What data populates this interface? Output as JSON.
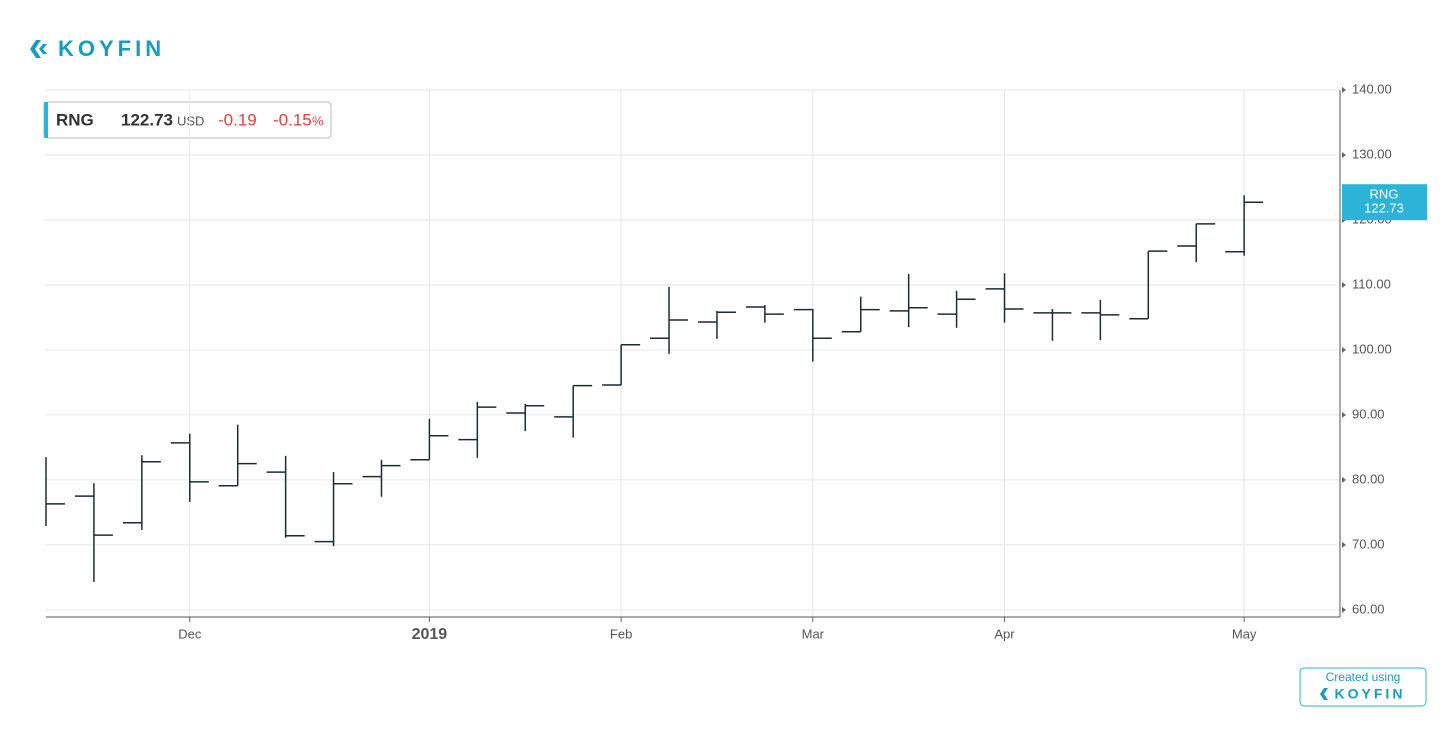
{
  "header": {
    "logo": "KOYFIN"
  },
  "quote": {
    "ticker": "RNG",
    "price": 122.73,
    "currency": "USD",
    "change": -0.19,
    "change_pct": -0.15,
    "pct_sign": "%"
  },
  "chart_data": {
    "type": "ohlc",
    "x": [
      0,
      1,
      2,
      3,
      4,
      5,
      6,
      7,
      8,
      9,
      10,
      11,
      12,
      13,
      14,
      15,
      16,
      17,
      18,
      19,
      20,
      21,
      22,
      23,
      24,
      25
    ],
    "xlim": [
      0,
      27
    ],
    "xticks": [
      {
        "value": 3,
        "label": "Dec"
      },
      {
        "value": 8,
        "label": "2019"
      },
      {
        "value": 12,
        "label": "Feb"
      },
      {
        "value": 16,
        "label": "Mar"
      },
      {
        "value": 20,
        "label": "Apr"
      },
      {
        "value": 25,
        "label": "May"
      }
    ],
    "ylim": [
      58.9,
      140
    ],
    "yticks": [
      {
        "value": 60,
        "label": "60.00"
      },
      {
        "value": 70,
        "label": "70.00"
      },
      {
        "value": 80,
        "label": "80.00"
      },
      {
        "value": 90,
        "label": "90.00"
      },
      {
        "value": 100,
        "label": "100.00"
      },
      {
        "value": 110,
        "label": "110.00"
      },
      {
        "value": 120,
        "label": "120.00"
      },
      {
        "value": 130,
        "label": "130.00"
      },
      {
        "value": 140,
        "label": "140.00"
      }
    ],
    "grid": true,
    "color": "#1d2c33",
    "open": [
      80,
      77.5,
      73.4,
      85.7,
      79.1,
      81.2,
      70.5,
      80.5,
      83.1,
      86.2,
      90.3,
      89.7,
      94.6,
      101.8,
      104.3,
      106.6,
      106.2,
      102.8,
      106.0,
      105.5,
      109.4,
      105.7,
      105.7,
      104.8,
      116.0,
      115.1
    ],
    "high": [
      83.5,
      79.5,
      83.8,
      87.1,
      88.5,
      83.7,
      81.2,
      83.1,
      89.4,
      92.0,
      91.7,
      94.5,
      100.8,
      109.7,
      106.0,
      106.9,
      106.3,
      108.2,
      111.7,
      109.1,
      111.8,
      106.3,
      107.7,
      115.2,
      119.4,
      123.8
    ],
    "low": [
      72.9,
      64.3,
      72.3,
      76.6,
      79.1,
      71.1,
      69.8,
      77.4,
      83.1,
      83.4,
      87.5,
      86.5,
      94.6,
      99.4,
      101.7,
      104.2,
      98.2,
      102.8,
      103.5,
      103.4,
      104.2,
      101.4,
      101.5,
      104.8,
      113.5,
      114.5
    ],
    "close": [
      76.3,
      71.5,
      82.8,
      79.7,
      82.5,
      71.4,
      79.4,
      82.2,
      86.8,
      91.2,
      91.4,
      94.5,
      100.8,
      104.6,
      105.8,
      105.5,
      101.8,
      106.2,
      106.5,
      107.8,
      106.3,
      105.7,
      105.4,
      115.2,
      119.4,
      122.73
    ]
  },
  "footer": {
    "text": "Created using",
    "logo": "KOYFIN"
  }
}
